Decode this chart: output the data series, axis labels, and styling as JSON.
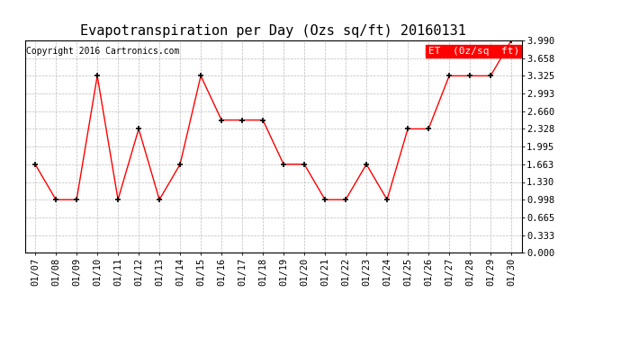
{
  "title": "Evapotranspiration per Day (Ozs sq/ft) 20160131",
  "copyright": "Copyright 2016 Cartronics.com",
  "legend_label": "ET  (0z/sq  ft)",
  "dates": [
    "01/07",
    "01/08",
    "01/09",
    "01/10",
    "01/11",
    "01/12",
    "01/13",
    "01/14",
    "01/15",
    "01/16",
    "01/17",
    "01/18",
    "01/19",
    "01/20",
    "01/21",
    "01/22",
    "01/23",
    "01/24",
    "01/25",
    "01/26",
    "01/27",
    "01/28",
    "01/29",
    "01/30"
  ],
  "values": [
    1.663,
    0.998,
    0.998,
    3.325,
    0.998,
    2.328,
    0.998,
    1.663,
    3.325,
    2.494,
    2.494,
    2.494,
    1.663,
    1.663,
    0.998,
    0.998,
    1.663,
    0.998,
    2.328,
    2.328,
    3.325,
    3.325,
    3.325,
    3.99
  ],
  "ylim": [
    0.0,
    3.99
  ],
  "yticks": [
    0.0,
    0.333,
    0.665,
    0.998,
    1.33,
    1.663,
    1.995,
    2.328,
    2.66,
    2.993,
    3.325,
    3.658,
    3.99
  ],
  "line_color": "red",
  "marker": "+",
  "marker_color": "black",
  "bg_color": "white",
  "grid_color": "#bbbbbb",
  "legend_bg": "red",
  "legend_text_color": "white",
  "title_fontsize": 11,
  "copyright_fontsize": 7,
  "tick_fontsize": 7.5,
  "legend_fontsize": 8
}
